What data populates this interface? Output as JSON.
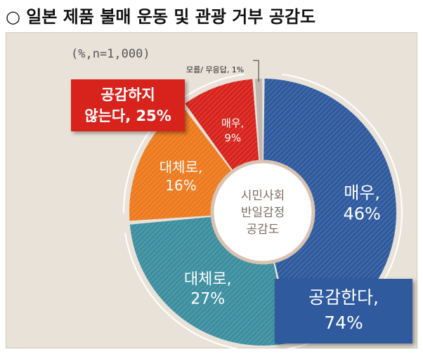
{
  "title": "○ 일본 제품 불매 운동 및 관광 거부 공감도",
  "note": "(%,n=1,000)",
  "center_label": [
    "시민사회",
    "반일감정",
    "공감도"
  ],
  "callouts": {
    "disagree": [
      "공감하지",
      "않는다, 25%"
    ],
    "agree": [
      "공감한다,",
      "74%"
    ]
  },
  "dont_know_label": "모름/ 무응답, 1%",
  "colors": {
    "agree_strong": "#2f5a9e",
    "agree": "#3d8fa0",
    "disagree": "#ee7a1e",
    "disagree_strong": "#d8231d",
    "dont_know": "#c0b8b0"
  },
  "chart_data": {
    "type": "pie",
    "title": "일본 제품 불매 운동 및 관광 거부 공감도",
    "unit": "%",
    "n": 1000,
    "slices": [
      {
        "label": [
          "매우,",
          "46%"
        ],
        "category": "공감한다",
        "value": 46,
        "color": "#2f5a9e"
      },
      {
        "label": [
          "대체로,",
          "27%"
        ],
        "category": "공감한다",
        "value": 27,
        "color": "#3d8fa0"
      },
      {
        "label": [
          "대체로,",
          "16%"
        ],
        "category": "공감하지 않는다",
        "value": 16,
        "color": "#ee7a1e"
      },
      {
        "label": [
          "매우,",
          "9%"
        ],
        "category": "공감하지 않는다",
        "value": 9,
        "color": "#d8231d"
      },
      {
        "label": [
          "모름/ 무응답, 1%"
        ],
        "category": "모름/ 무응답",
        "value": 1,
        "color": "#c0b8b0"
      }
    ],
    "groups": [
      {
        "label": "공감한다",
        "value": 74
      },
      {
        "label": "공감하지 않는다",
        "value": 25
      }
    ]
  }
}
